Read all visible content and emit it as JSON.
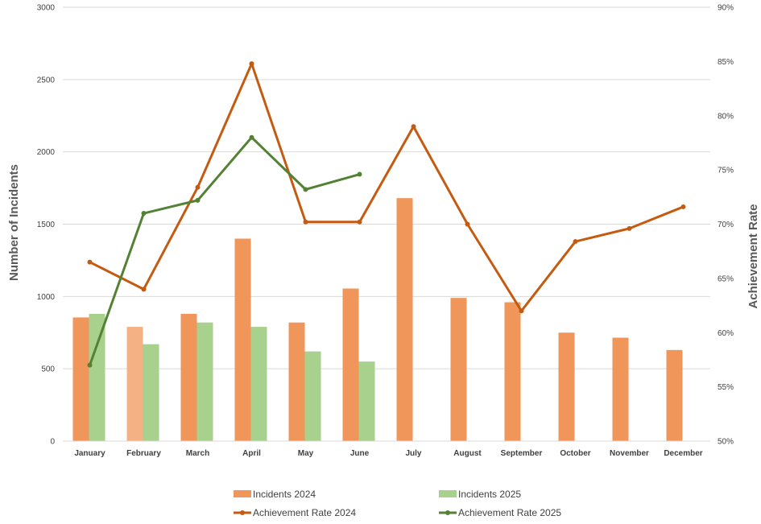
{
  "chart_data": {
    "type": "bar",
    "categories": [
      "January",
      "February",
      "March",
      "April",
      "May",
      "June",
      "July",
      "August",
      "September",
      "October",
      "November",
      "December"
    ],
    "series": [
      {
        "name": "Incidents 2024",
        "type": "bar",
        "axis": "left",
        "color": "#F0965A",
        "values": [
          855,
          790,
          880,
          1400,
          820,
          1055,
          1680,
          990,
          960,
          750,
          715,
          630
        ]
      },
      {
        "name": "Incidents 2025",
        "type": "bar",
        "axis": "left",
        "color": "#A9D18E",
        "values": [
          880,
          670,
          820,
          790,
          620,
          550,
          null,
          null,
          null,
          null,
          null,
          null
        ]
      },
      {
        "name": "Achievement Rate 2024",
        "type": "line",
        "axis": "right",
        "color": "#C55A11",
        "values": [
          66.5,
          64,
          73.4,
          84.8,
          70.2,
          70.2,
          79,
          70,
          62,
          68.4,
          69.6,
          71.6
        ]
      },
      {
        "name": "Achievement Rate 2025",
        "type": "line",
        "axis": "right",
        "color": "#548235",
        "values": [
          57,
          71,
          72.2,
          78,
          73.2,
          74.6,
          null,
          null,
          null,
          null,
          null,
          null
        ]
      }
    ],
    "ylabel": "Number of Incidents",
    "y2label": "Achievement Rate",
    "ylim": [
      0,
      3000
    ],
    "y2lim": [
      50,
      90
    ],
    "yticks": [
      "0",
      "500",
      "1000",
      "1500",
      "2000",
      "2500",
      "3000"
    ],
    "y2ticks": [
      "50%",
      "55%",
      "60%",
      "65%",
      "70%",
      "75%",
      "80%",
      "85%",
      "90%"
    ],
    "highlight": {
      "series": 0,
      "index": 1,
      "color": "#F4B183"
    },
    "grid": true,
    "legend": "bottom"
  }
}
